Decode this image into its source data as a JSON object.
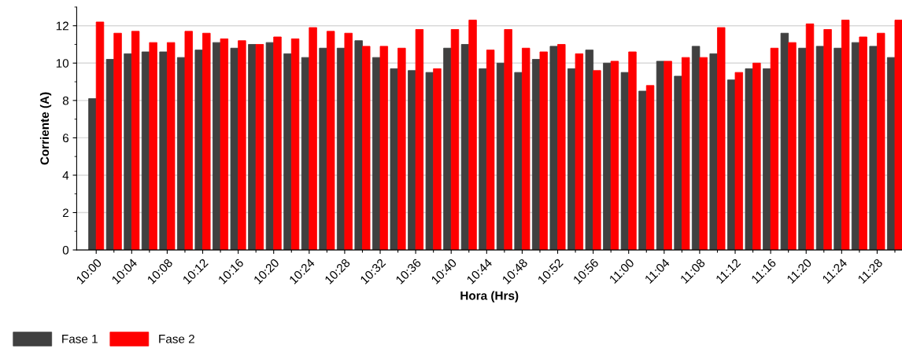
{
  "chart_data": {
    "type": "bar",
    "xlabel": "Hora (Hrs)",
    "ylabel": "Corriente (A)",
    "categories": [
      "10:00",
      null,
      "10:04",
      null,
      "10:08",
      null,
      "10:12",
      null,
      "10:16",
      null,
      "10:20",
      null,
      "10:24",
      null,
      "10:28",
      null,
      "10:32",
      null,
      "10:36",
      null,
      "10:40",
      null,
      "10:44",
      null,
      "10:48",
      null,
      "10:52",
      null,
      "10:56",
      null,
      "11:00",
      null,
      "11:04",
      null,
      "11:08",
      null,
      "11:12",
      null,
      "11:16",
      null,
      "11:20",
      null,
      "11:24",
      null,
      "11:28",
      null
    ],
    "series": [
      {
        "name": "Fase 1",
        "color": "#404040",
        "values": [
          8.1,
          10.2,
          10.5,
          10.6,
          10.6,
          10.3,
          10.7,
          11.1,
          10.8,
          11.0,
          11.1,
          10.5,
          10.3,
          10.8,
          10.8,
          11.2,
          10.3,
          9.7,
          9.6,
          9.5,
          10.8,
          11.0,
          9.7,
          10.0,
          9.5,
          10.2,
          10.9,
          9.7,
          10.7,
          10.0,
          9.5,
          8.5,
          10.1,
          9.3,
          10.9,
          10.5,
          9.1,
          9.7,
          9.7,
          11.6,
          10.8,
          10.9,
          10.8,
          11.1,
          10.9,
          10.3
        ]
      },
      {
        "name": "Fase 2",
        "color": "#ff0000",
        "values": [
          12.2,
          11.6,
          11.7,
          11.1,
          11.1,
          11.7,
          11.6,
          11.3,
          11.2,
          11.0,
          11.4,
          11.3,
          11.9,
          11.7,
          11.6,
          10.9,
          10.9,
          10.8,
          11.8,
          9.7,
          11.8,
          12.3,
          10.7,
          11.8,
          10.8,
          10.6,
          11.0,
          10.5,
          9.6,
          10.1,
          10.6,
          8.8,
          10.1,
          10.3,
          10.3,
          11.9,
          9.5,
          10.0,
          10.8,
          11.1,
          12.1,
          11.8,
          12.3,
          11.4,
          11.6,
          12.3
        ]
      }
    ],
    "ylim": [
      0,
      13
    ],
    "yticks": [
      0,
      2,
      4,
      6,
      8,
      10,
      12
    ],
    "grid": "y",
    "legend": "bottom left"
  }
}
